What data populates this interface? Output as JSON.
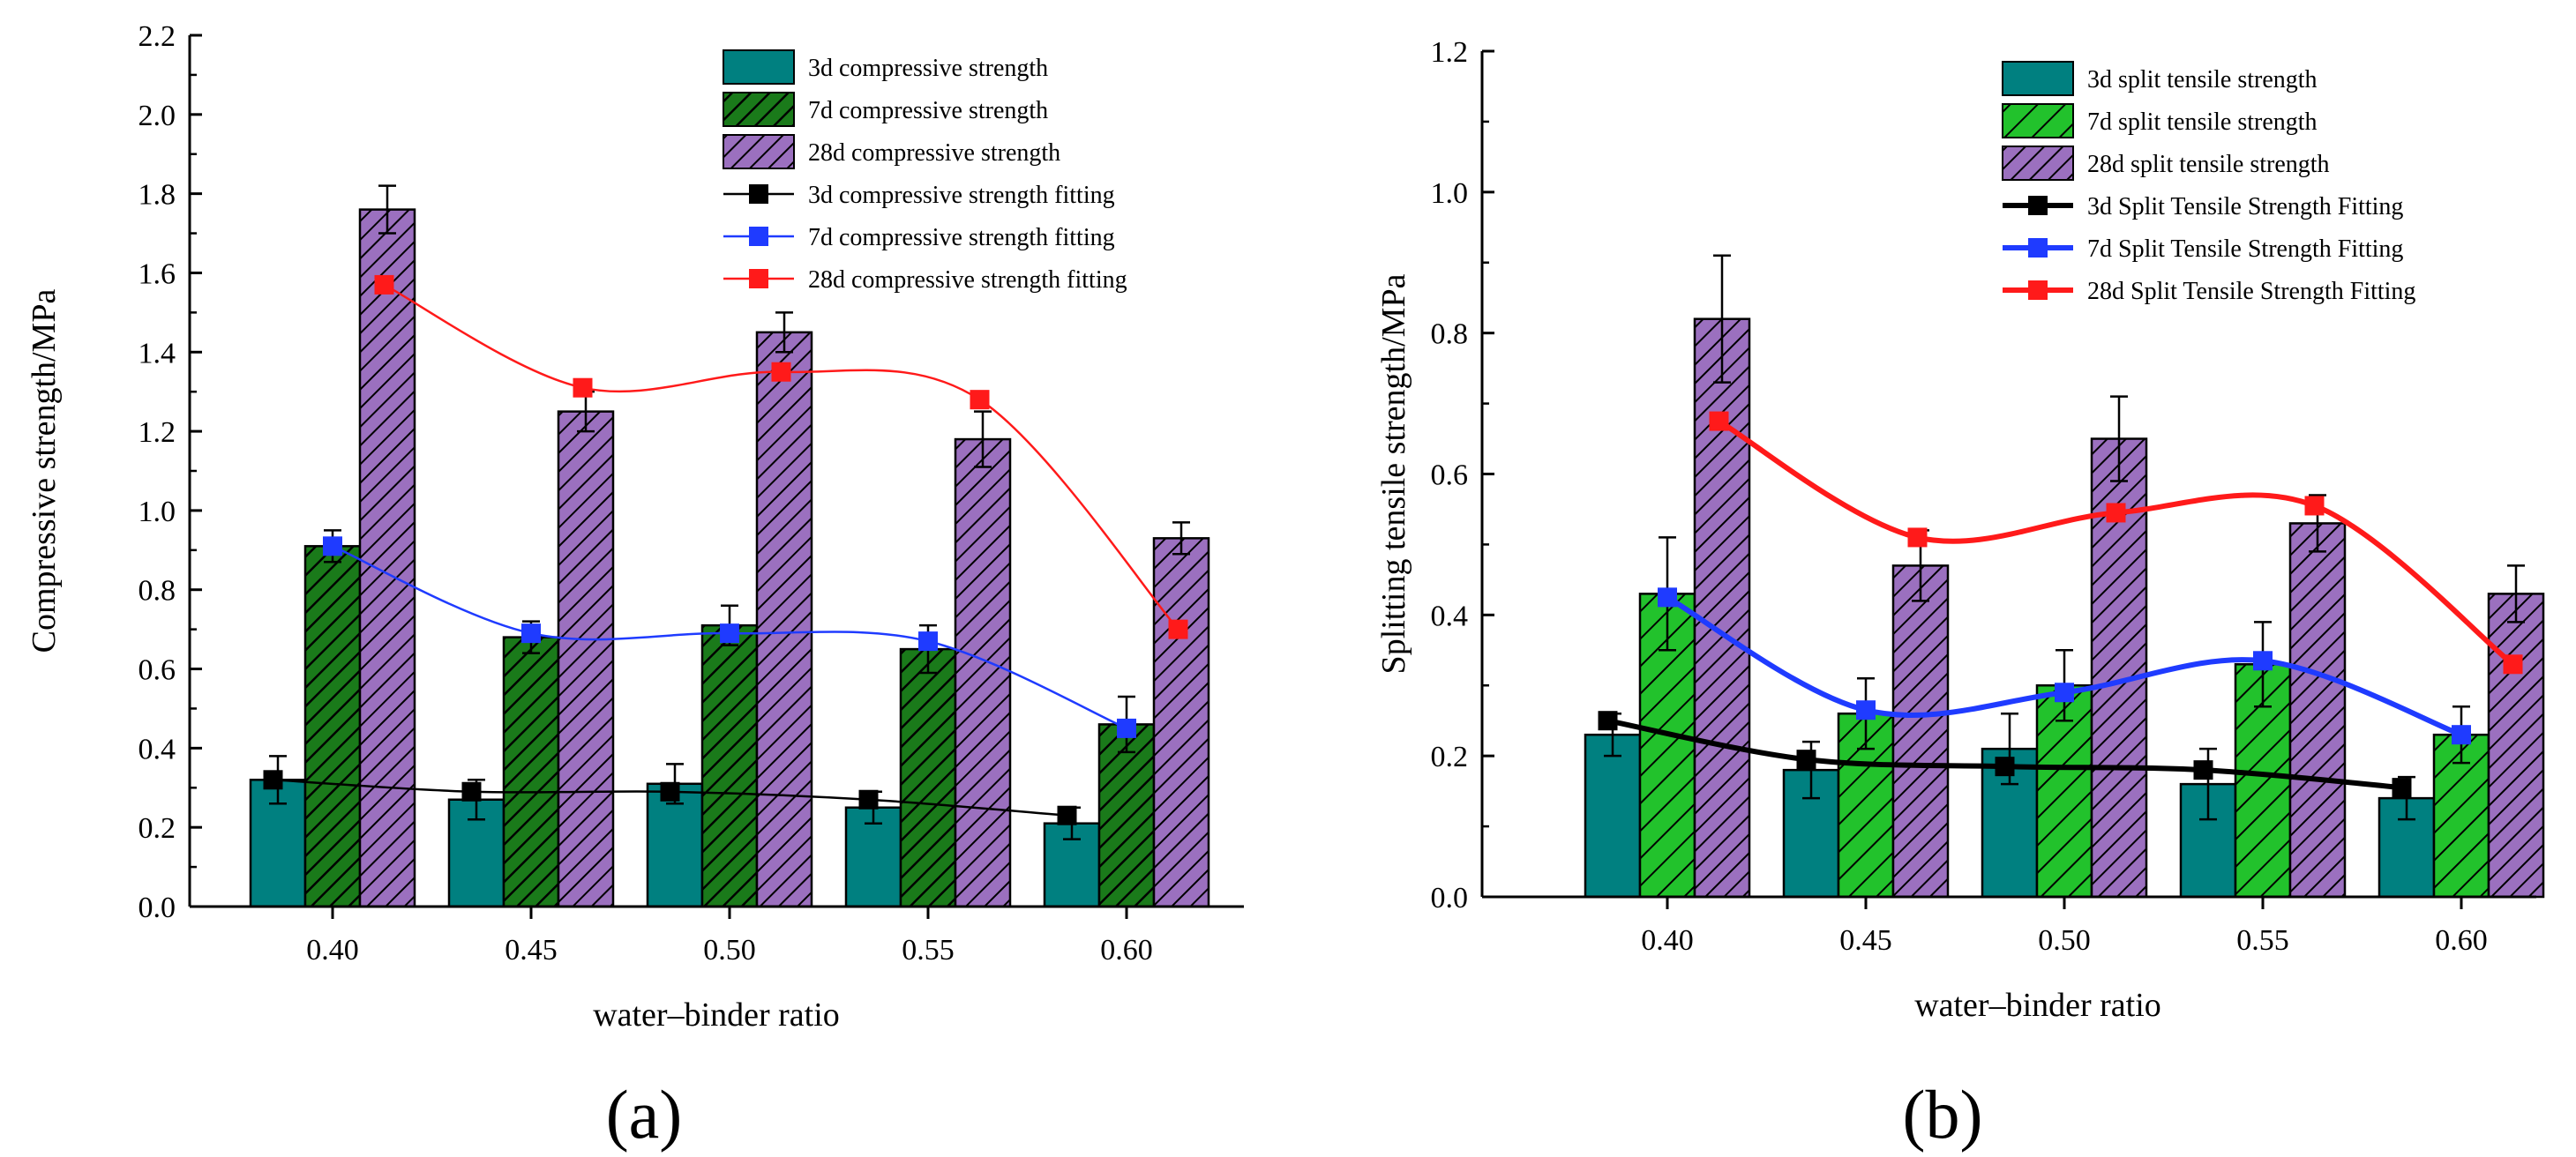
{
  "colors": {
    "d3_bar": "#008080",
    "d7_bar_a": "#1a7a1a",
    "d7_bar_b": "#22c22c",
    "d28_bar": "#9b70bf",
    "fit_3d": "#000000",
    "fit_7d": "#1f3bff",
    "fit_28d": "#ff1a1a"
  },
  "chart_data": [
    {
      "type": "bar",
      "panel_label": "(a)",
      "title": "",
      "xlabel": "water–binder ratio",
      "ylabel": "Compressive strength/MPa",
      "ylim": [
        0.0,
        2.2
      ],
      "yticks": [
        "0.0",
        "0.2",
        "0.4",
        "0.6",
        "0.8",
        "1.0",
        "1.2",
        "1.4",
        "1.6",
        "1.8",
        "2.0",
        "2.2"
      ],
      "categories": [
        "0.40",
        "0.45",
        "0.50",
        "0.55",
        "0.60"
      ],
      "legend_position": "top-right",
      "series": [
        {
          "name": "3d compressive strength",
          "kind": "bar",
          "hatch": "none",
          "values": [
            0.32,
            0.27,
            0.31,
            0.25,
            0.21
          ],
          "errors": [
            0.06,
            0.05,
            0.05,
            0.04,
            0.04
          ]
        },
        {
          "name": "7d compressive strength",
          "kind": "bar",
          "hatch": "dense",
          "values": [
            0.91,
            0.68,
            0.71,
            0.65,
            0.46
          ],
          "errors": [
            0.04,
            0.04,
            0.05,
            0.06,
            0.07
          ]
        },
        {
          "name": "28d compressive strength",
          "kind": "bar",
          "hatch": "dense",
          "values": [
            1.76,
            1.25,
            1.45,
            1.18,
            0.93
          ],
          "errors": [
            0.06,
            0.05,
            0.05,
            0.07,
            0.04
          ]
        }
      ],
      "fits": [
        {
          "name": "3d compressive strength fitting",
          "width": "thin",
          "points": [
            [
              0.385,
              0.32
            ],
            [
              0.435,
              0.29
            ],
            [
              0.485,
              0.29
            ],
            [
              0.535,
              0.27
            ],
            [
              0.585,
              0.23
            ]
          ]
        },
        {
          "name": "7d compressive strength fitting",
          "width": "thin",
          "points": [
            [
              0.4,
              0.91
            ],
            [
              0.45,
              0.69
            ],
            [
              0.5,
              0.69
            ],
            [
              0.55,
              0.67
            ],
            [
              0.6,
              0.45
            ]
          ]
        },
        {
          "name": "28d compressive strength fitting",
          "width": "thin",
          "points": [
            [
              0.413,
              1.57
            ],
            [
              0.463,
              1.31
            ],
            [
              0.513,
              1.35
            ],
            [
              0.563,
              1.28
            ],
            [
              0.613,
              0.7
            ]
          ]
        }
      ]
    },
    {
      "type": "bar",
      "panel_label": "(b)",
      "title": "",
      "xlabel": "water–binder ratio",
      "ylabel": "Splitting tensile strength/MPa",
      "ylim": [
        0.0,
        1.2
      ],
      "yticks": [
        "0.0",
        "0.2",
        "0.4",
        "0.6",
        "0.8",
        "1.0",
        "1.2"
      ],
      "categories": [
        "0.40",
        "0.45",
        "0.50",
        "0.55",
        "0.60"
      ],
      "legend_position": "top-right",
      "series": [
        {
          "name": "3d split tensile strength",
          "kind": "bar",
          "hatch": "none",
          "values": [
            0.23,
            0.18,
            0.21,
            0.16,
            0.14
          ],
          "errors": [
            0.03,
            0.04,
            0.05,
            0.05,
            0.03
          ]
        },
        {
          "name": "7d split tensile strength",
          "kind": "bar",
          "hatch": "sparse",
          "values": [
            0.43,
            0.26,
            0.3,
            0.33,
            0.23
          ],
          "errors": [
            0.08,
            0.05,
            0.05,
            0.06,
            0.04
          ]
        },
        {
          "name": "28d split tensile strength",
          "kind": "bar",
          "hatch": "dense",
          "values": [
            0.82,
            0.47,
            0.65,
            0.53,
            0.43
          ],
          "errors": [
            0.09,
            0.05,
            0.06,
            0.04,
            0.04
          ]
        }
      ],
      "fits": [
        {
          "name": "3d Split Tensile Strength Fitting",
          "width": "thick",
          "points": [
            [
              0.385,
              0.25
            ],
            [
              0.435,
              0.195
            ],
            [
              0.485,
              0.185
            ],
            [
              0.535,
              0.18
            ],
            [
              0.585,
              0.155
            ]
          ]
        },
        {
          "name": "7d Split Tensile Strength Fitting",
          "width": "thick",
          "points": [
            [
              0.4,
              0.425
            ],
            [
              0.45,
              0.265
            ],
            [
              0.5,
              0.29
            ],
            [
              0.55,
              0.335
            ],
            [
              0.6,
              0.23
            ]
          ]
        },
        {
          "name": "28d Split Tensile Strength Fitting",
          "width": "thick",
          "points": [
            [
              0.413,
              0.675
            ],
            [
              0.463,
              0.51
            ],
            [
              0.513,
              0.545
            ],
            [
              0.563,
              0.555
            ],
            [
              0.613,
              0.33
            ]
          ]
        }
      ]
    }
  ]
}
